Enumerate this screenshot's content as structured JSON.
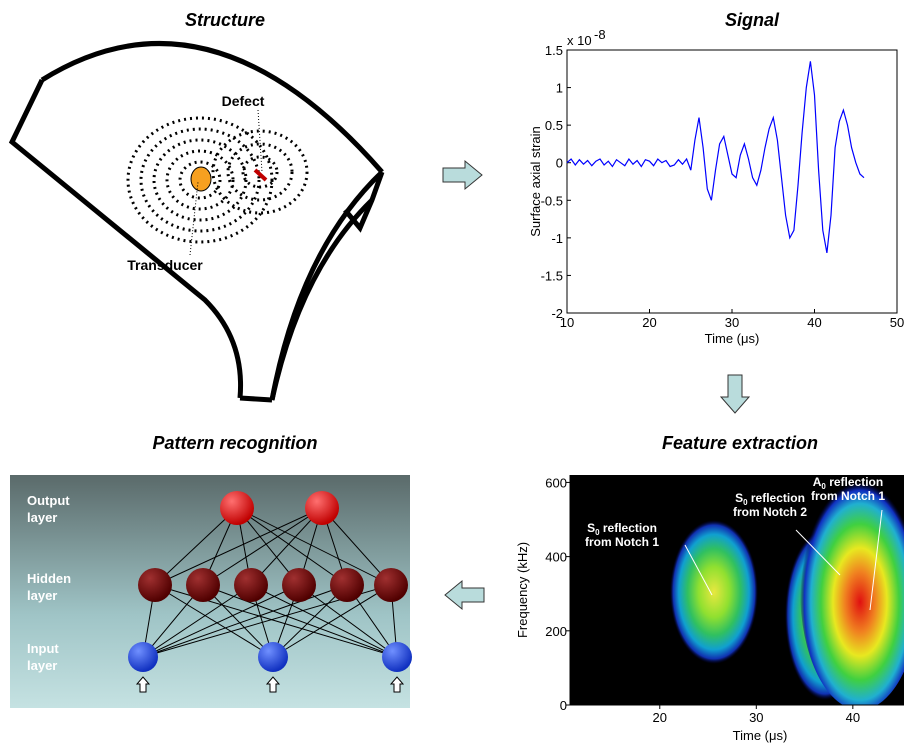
{
  "structure": {
    "title": "Structure",
    "defect_label": "Defect",
    "transducer_label": "Transducer"
  },
  "signal": {
    "title": "Signal",
    "x_label": "Time (μs)",
    "y_label": "Surface axial strain",
    "exponent_base": "x 10",
    "exponent_power": "-8",
    "xlim": [
      10,
      50
    ],
    "ylim": [
      -2,
      1.5
    ],
    "xticks": [
      10,
      20,
      30,
      40,
      50
    ],
    "yticks": [
      -2,
      -1.5,
      -1,
      -0.5,
      0,
      0.5,
      1,
      1.5
    ],
    "color": "#0000ff",
    "x": [
      10,
      10.5,
      11,
      11.5,
      12,
      12.5,
      13,
      13.5,
      14,
      14.5,
      15,
      15.5,
      16,
      16.5,
      17,
      17.5,
      18,
      18.5,
      19,
      19.5,
      20,
      20.5,
      21,
      21.5,
      22,
      22.5,
      23,
      23.5,
      24,
      24.5,
      25,
      25.5,
      26,
      26.5,
      27,
      27.5,
      28,
      28.5,
      29,
      29.5,
      30,
      30.5,
      31,
      31.5,
      32,
      32.5,
      33,
      33.5,
      34,
      34.5,
      35,
      35.5,
      36,
      36.5,
      37,
      37.5,
      38,
      38.5,
      39,
      39.5,
      40,
      40.5,
      41,
      41.5,
      42,
      42.5,
      43,
      43.5,
      44,
      44.5,
      45,
      45.5,
      46
    ],
    "values": [
      0,
      0.05,
      -0.03,
      0.04,
      -0.02,
      0.03,
      -0.04,
      0.02,
      0.05,
      -0.03,
      0.02,
      -0.05,
      0.04,
      0,
      -0.04,
      0.05,
      -0.02,
      0.03,
      -0.05,
      0.04,
      0.02,
      -0.04,
      0.05,
      0,
      0.03,
      -0.05,
      -0.03,
      0.04,
      -0.02,
      0.05,
      -0.1,
      0.3,
      0.6,
      0.2,
      -0.35,
      -0.5,
      -0.1,
      0.25,
      0.35,
      0.1,
      -0.15,
      -0.2,
      0.1,
      0.25,
      0.05,
      -0.2,
      -0.3,
      -0.1,
      0.2,
      0.45,
      0.6,
      0.3,
      -0.2,
      -0.7,
      -1,
      -0.9,
      -0.3,
      0.4,
      1,
      1.35,
      0.9,
      -0.1,
      -0.9,
      -1.2,
      -0.7,
      0.2,
      0.55,
      0.7,
      0.5,
      0.2,
      0,
      -0.15,
      -0.2
    ]
  },
  "feature": {
    "title": "Feature extraction",
    "x_label": "Time (μs)",
    "y_label": "Frequency (kHz)",
    "xlim": [
      10.7,
      45.3
    ],
    "ylim": [
      0,
      620
    ],
    "xticks": [
      20,
      30,
      40
    ],
    "yticks": [
      0,
      200,
      400,
      600
    ],
    "annotations": [
      {
        "mode": "S",
        "sub": "0",
        "text": " reflection",
        "line2": "from Notch 1"
      },
      {
        "mode": "S",
        "sub": "0",
        "text": " reflection",
        "line2": "from Notch 2"
      },
      {
        "mode": "A",
        "sub": "0",
        "text": " reflection",
        "line2": "from Notch 1"
      }
    ]
  },
  "pattern": {
    "title": "Pattern recognition",
    "layers": [
      {
        "line1": "Output",
        "line2": "layer"
      },
      {
        "line1": "Hidden",
        "line2": "layer"
      },
      {
        "line1": "Input",
        "line2": "layer"
      }
    ]
  }
}
